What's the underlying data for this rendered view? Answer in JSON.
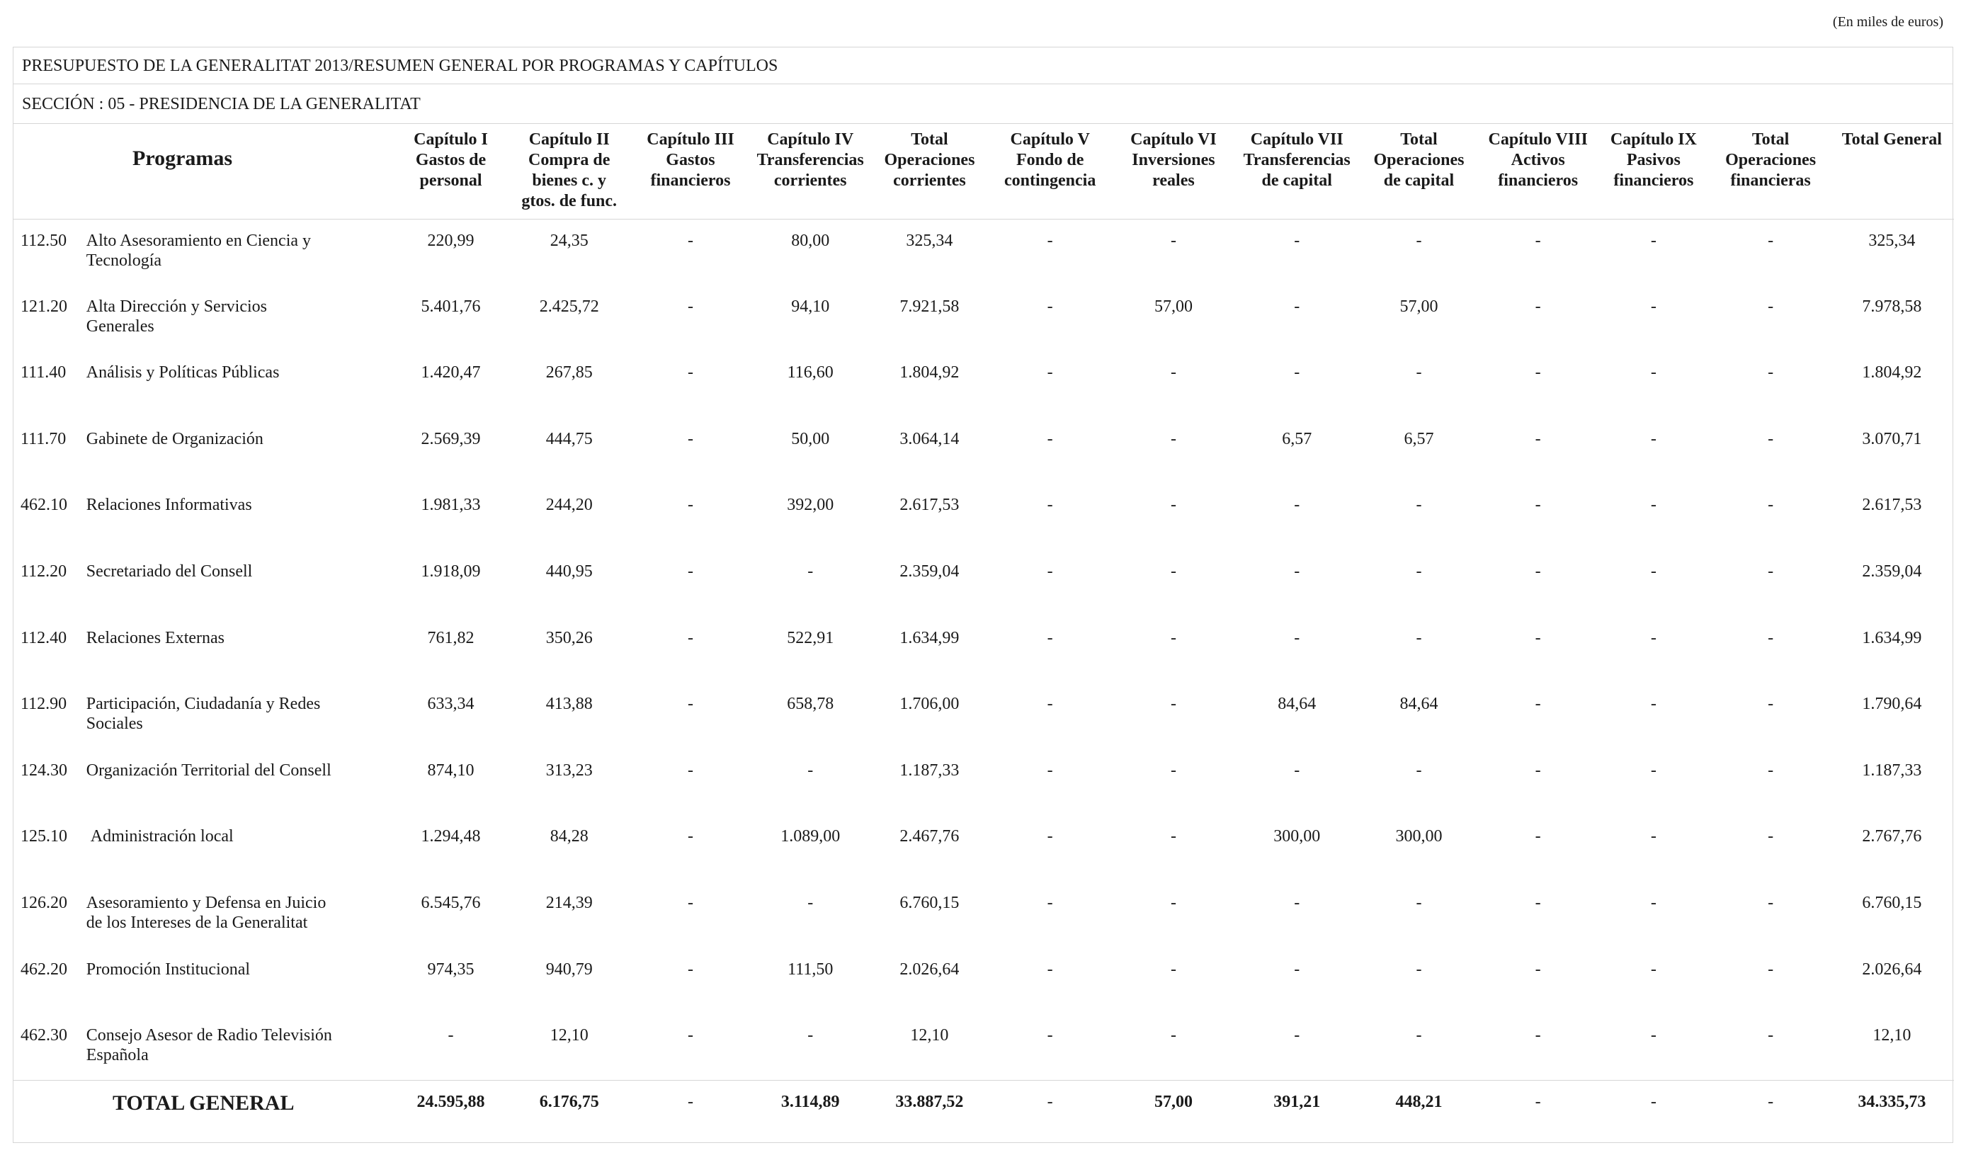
{
  "units_note": "(En miles de euros)",
  "title": "PRESUPUESTO DE LA GENERALITAT 2013/RESUMEN GENERAL POR PROGRAMAS Y CAPÍTULOS",
  "section": "SECCIÓN : 05  -  PRESIDENCIA DE LA GENERALITAT",
  "headers": {
    "programas": "Programas",
    "columns": [
      [
        "Capítulo I",
        "Gastos de",
        "personal"
      ],
      [
        "Capítulo II",
        "Compra de",
        "bienes c. y",
        "gtos. de func."
      ],
      [
        "Capítulo III",
        "Gastos",
        "financieros"
      ],
      [
        "Capítulo IV",
        "Transferencias",
        "corrientes"
      ],
      [
        "Total",
        "Operaciones",
        "corrientes"
      ],
      [
        "Capítulo V",
        "Fondo de",
        "contingencia"
      ],
      [
        "Capítulo VI",
        "Inversiones",
        "reales"
      ],
      [
        "Capítulo VII",
        "Transferencias",
        "de capital"
      ],
      [
        "Total",
        "Operaciones",
        "de capital"
      ],
      [
        "Capítulo VIII",
        "Activos",
        "financieros"
      ],
      [
        "Capítulo IX",
        "Pasivos",
        "financieros"
      ],
      [
        "Total",
        "Operaciones",
        "financieras"
      ],
      [
        "Total General"
      ]
    ]
  },
  "rows": [
    {
      "code": "112.50",
      "name": [
        "Alto Asesoramiento en Ciencia y",
        "Tecnología"
      ],
      "values": [
        "220,99",
        "24,35",
        "-",
        "80,00",
        "325,34",
        "-",
        "-",
        "-",
        "-",
        "-",
        "-",
        "-",
        "325,34"
      ]
    },
    {
      "code": "121.20",
      "name": [
        "Alta Dirección y Servicios",
        "Generales"
      ],
      "values": [
        "5.401,76",
        "2.425,72",
        "-",
        "94,10",
        "7.921,58",
        "-",
        "57,00",
        "-",
        "57,00",
        "-",
        "-",
        "-",
        "7.978,58"
      ]
    },
    {
      "code": "111.40",
      "name": [
        "Análisis y Políticas Públicas"
      ],
      "values": [
        "1.420,47",
        "267,85",
        "-",
        "116,60",
        "1.804,92",
        "-",
        "-",
        "-",
        "-",
        "-",
        "-",
        "-",
        "1.804,92"
      ]
    },
    {
      "code": "111.70",
      "name": [
        "Gabinete de Organización"
      ],
      "values": [
        "2.569,39",
        "444,75",
        "-",
        "50,00",
        "3.064,14",
        "-",
        "-",
        "6,57",
        "6,57",
        "-",
        "-",
        "-",
        "3.070,71"
      ]
    },
    {
      "code": "462.10",
      "name": [
        "Relaciones Informativas"
      ],
      "values": [
        "1.981,33",
        "244,20",
        "-",
        "392,00",
        "2.617,53",
        "-",
        "-",
        "-",
        "-",
        "-",
        "-",
        "-",
        "2.617,53"
      ]
    },
    {
      "code": "112.20",
      "name": [
        "Secretariado del Consell"
      ],
      "values": [
        "1.918,09",
        "440,95",
        "-",
        "-",
        "2.359,04",
        "-",
        "-",
        "-",
        "-",
        "-",
        "-",
        "-",
        "2.359,04"
      ]
    },
    {
      "code": "112.40",
      "name": [
        "Relaciones Externas"
      ],
      "values": [
        "761,82",
        "350,26",
        "-",
        "522,91",
        "1.634,99",
        "-",
        "-",
        "-",
        "-",
        "-",
        "-",
        "-",
        "1.634,99"
      ]
    },
    {
      "code": "112.90",
      "name": [
        "Participación, Ciudadanía y Redes",
        "Sociales"
      ],
      "values": [
        "633,34",
        "413,88",
        "-",
        "658,78",
        "1.706,00",
        "-",
        "-",
        "84,64",
        "84,64",
        "-",
        "-",
        "-",
        "1.790,64"
      ]
    },
    {
      "code": "124.30",
      "name": [
        "Organización Territorial del Consell"
      ],
      "values": [
        "874,10",
        "313,23",
        "-",
        "-",
        "1.187,33",
        "-",
        "-",
        "-",
        "-",
        "-",
        "-",
        "-",
        "1.187,33"
      ]
    },
    {
      "code": "125.10",
      "name": [
        " Administración local"
      ],
      "values": [
        "1.294,48",
        "84,28",
        "-",
        "1.089,00",
        "2.467,76",
        "-",
        "-",
        "300,00",
        "300,00",
        "-",
        "-",
        "-",
        "2.767,76"
      ]
    },
    {
      "code": "126.20",
      "name": [
        "Asesoramiento y Defensa en Juicio",
        "de los Intereses de la Generalitat"
      ],
      "values": [
        "6.545,76",
        "214,39",
        "-",
        "-",
        "6.760,15",
        "-",
        "-",
        "-",
        "-",
        "-",
        "-",
        "-",
        "6.760,15"
      ]
    },
    {
      "code": "462.20",
      "name": [
        "Promoción Institucional"
      ],
      "values": [
        "974,35",
        "940,79",
        "-",
        "111,50",
        "2.026,64",
        "-",
        "-",
        "-",
        "-",
        "-",
        "-",
        "-",
        "2.026,64"
      ]
    },
    {
      "code": "462.30",
      "name": [
        "Consejo Asesor de Radio Televisión",
        "Española"
      ],
      "values": [
        "-",
        "12,10",
        "-",
        "-",
        "12,10",
        "-",
        "-",
        "-",
        "-",
        "-",
        "-",
        "-",
        "12,10"
      ]
    }
  ],
  "total": {
    "label": "TOTAL GENERAL",
    "values": [
      "24.595,88",
      "6.176,75",
      "-",
      "3.114,89",
      "33.887,52",
      "-",
      "57,00",
      "391,21",
      "448,21",
      "-",
      "-",
      "-",
      "34.335,73"
    ]
  }
}
